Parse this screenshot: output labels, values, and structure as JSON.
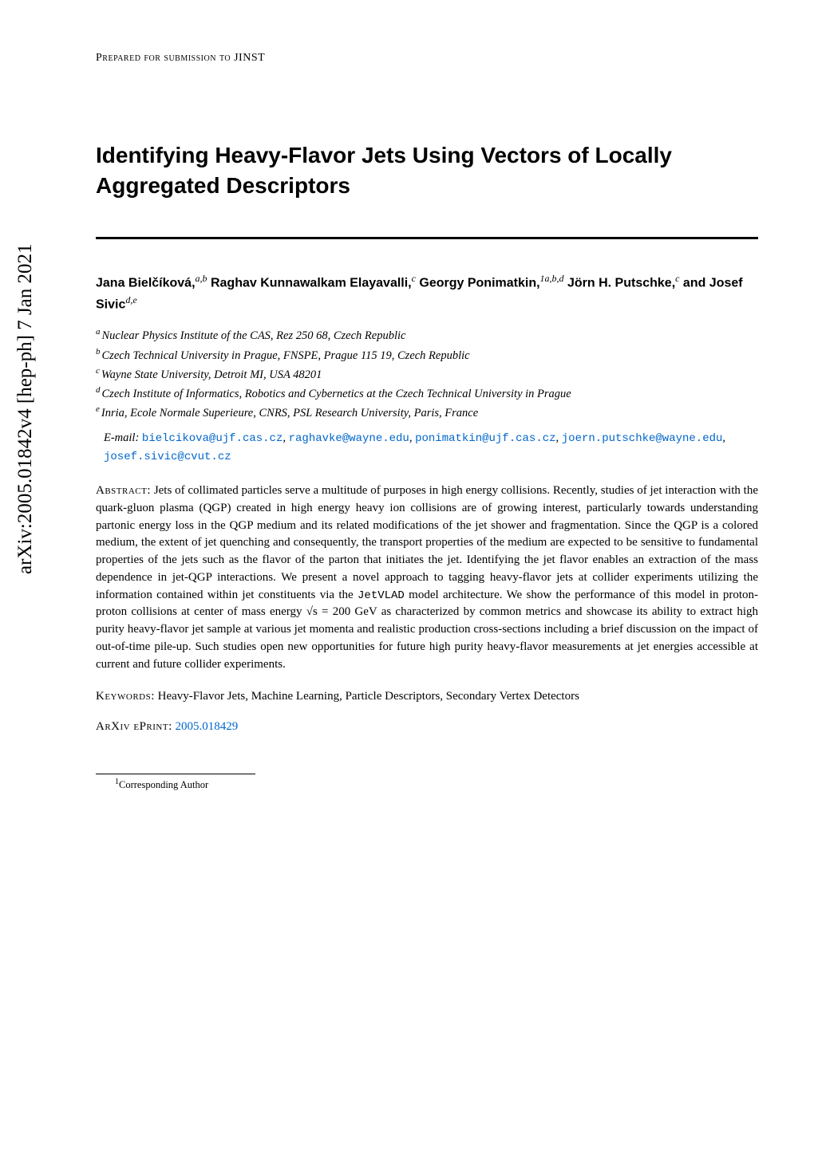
{
  "arxiv_label": "arXiv:2005.01842v4  [hep-ph]  7 Jan 2021",
  "journal": "Prepared for submission to JINST",
  "title": "Identifying Heavy-Flavor Jets Using Vectors of Locally Aggregated Descriptors",
  "authors_html": "Jana Bielčíková,<sup>a,b</sup> Raghav Kunnawalkam Elayavalli,<sup>c</sup> Georgy Ponimatkin,<sup>1a,b,d</sup> Jörn H. Putschke,<sup>c</sup> and Josef Sivic<sup>d,e</sup>",
  "affiliations": [
    {
      "sup": "a",
      "text": "Nuclear Physics Institute of the CAS, Rez 250 68, Czech Republic"
    },
    {
      "sup": "b",
      "text": "Czech Technical University in Prague, FNSPE, Prague 115 19, Czech Republic"
    },
    {
      "sup": "c",
      "text": "Wayne State University, Detroit MI, USA 48201"
    },
    {
      "sup": "d",
      "text": "Czech Institute of Informatics, Robotics and Cybernetics at the Czech Technical University in Prague"
    },
    {
      "sup": "e",
      "text": "Inria, Ecole Normale Superieure, CNRS, PSL Research University, Paris, France"
    }
  ],
  "email_label": "E-mail:",
  "emails": [
    "bielcikova@ujf.cas.cz",
    "raghavke@wayne.edu",
    "ponimatkin@ujf.cas.cz",
    "joern.putschke@wayne.edu",
    "josef.sivic@cvut.cz"
  ],
  "abstract_label": "Abstract:",
  "abstract_text": "Jets of collimated particles serve a multitude of purposes in high energy collisions. Recently, studies of jet interaction with the quark-gluon plasma (QGP) created in high energy heavy ion collisions are of growing interest, particularly towards understanding partonic energy loss in the QGP medium and its related modifications of the jet shower and fragmentation. Since the QGP is a colored medium, the extent of jet quenching and consequently, the transport properties of the medium are expected to be sensitive to fundamental properties of the jets such as the flavor of the parton that initiates the jet. Identifying the jet flavor enables an extraction of the mass dependence in jet-QGP interactions. We present a novel approach to tagging heavy-flavor jets at collider experiments utilizing the information contained within jet constituents via the ",
  "abstract_code": "JetVLAD",
  "abstract_text2": " model architecture. We show the performance of this model in proton-proton collisions at center of mass energy √s = 200 GeV as characterized by common metrics and showcase its ability to extract high purity heavy-flavor jet sample at various jet momenta and realistic production cross-sections including a brief discussion on the impact of out-of-time pile-up. Such studies open new opportunities for future high purity heavy-flavor measurements at jet energies accessible at current and future collider experiments.",
  "keywords_label": "Keywords:",
  "keywords_text": "Heavy-Flavor Jets, Machine Learning, Particle Descriptors, Secondary Vertex Detectors",
  "eprint_label": "ArXiv ePrint:",
  "eprint_link": "2005.018429",
  "footnote_sup": "1",
  "footnote_text": "Corresponding Author"
}
